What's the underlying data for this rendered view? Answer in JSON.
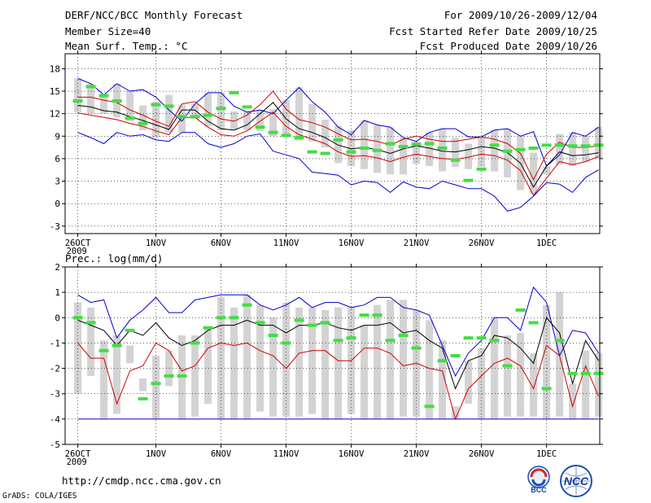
{
  "header": {
    "title": "DERF/NCC/BCC Monthly Forecast",
    "member_size": "Member Size=40",
    "range": "For 2009/10/26-2009/12/04",
    "fcst_started": "Fcst Started Refer Date 2009/10/25",
    "fcst_produced": "Fcst Produced Date 2009/10/26"
  },
  "footer": {
    "url": "http://cmdp.ncc.cma.gov.cn",
    "credit": "GrADS: COLA/IGES",
    "logo1_text": "BCC",
    "logo2_text": "NCC"
  },
  "chart_data": [
    {
      "type": "box-line",
      "title": "Mean Surf. Temp.: °C",
      "ylim": [
        -4,
        20
      ],
      "yticks": [
        -3,
        0,
        3,
        6,
        9,
        12,
        15,
        18
      ],
      "x_ticks": [
        {
          "day": 0,
          "label": "26OCT",
          "sub": "2009"
        },
        {
          "day": 6,
          "label": "1NOV"
        },
        {
          "day": 11,
          "label": "6NOV"
        },
        {
          "day": 16,
          "label": "11NOV"
        },
        {
          "day": 21,
          "label": "16NOV"
        },
        {
          "day": 26,
          "label": "21NOV"
        },
        {
          "day": 31,
          "label": "26NOV"
        },
        {
          "day": 36,
          "label": "1DEC"
        }
      ],
      "series": {
        "max": [
          16.7,
          16.0,
          14.5,
          16.0,
          15.0,
          15.2,
          14.2,
          12.5,
          11.0,
          13.3,
          14.8,
          14.8,
          13.0,
          12.2,
          12.5,
          12.0,
          13.8,
          15.5,
          13.6,
          12.2,
          10.2,
          9.2,
          11.1,
          10.5,
          10.2,
          8.8,
          8.3,
          9.5,
          10.0,
          10.0,
          8.9,
          8.9,
          9.8,
          10.0,
          9.0,
          9.6,
          5.0,
          6.5,
          9.5,
          9.0,
          10.2
        ],
        "p90": [
          14.2,
          14.2,
          13.8,
          13.5,
          12.5,
          11.8,
          11.0,
          10.3,
          13.3,
          13.6,
          12.2,
          11.3,
          11.0,
          11.8,
          13.2,
          15.0,
          12.6,
          11.2,
          10.8,
          10.2,
          9.3,
          8.5,
          8.6,
          8.3,
          7.8,
          8.6,
          9.0,
          8.6,
          8.3,
          8.3,
          8.6,
          8.9,
          8.6,
          8.0,
          6.7,
          3.2,
          6.6,
          8.2,
          7.5,
          7.5,
          7.7
        ],
        "mean": [
          13.1,
          12.9,
          12.4,
          12.2,
          11.6,
          11.1,
          10.5,
          9.9,
          12.5,
          12.5,
          11.0,
          10.0,
          9.8,
          10.5,
          12.0,
          13.5,
          11.3,
          10.0,
          9.5,
          8.8,
          7.8,
          7.3,
          7.5,
          7.2,
          6.7,
          7.3,
          7.7,
          7.4,
          7.0,
          6.9,
          7.2,
          7.6,
          7.4,
          6.8,
          5.4,
          2.2,
          5.0,
          6.9,
          6.4,
          6.5,
          6.8
        ],
        "p10": [
          12.1,
          11.8,
          11.5,
          11.2,
          10.7,
          10.3,
          9.7,
          9.2,
          11.5,
          11.5,
          10.2,
          9.2,
          9.0,
          9.7,
          11.0,
          12.2,
          10.3,
          9.2,
          8.6,
          8.0,
          6.9,
          6.3,
          6.4,
          6.1,
          5.6,
          6.2,
          6.6,
          6.3,
          6.0,
          5.9,
          6.2,
          6.6,
          6.4,
          5.8,
          4.4,
          1.1,
          3.4,
          5.6,
          5.2,
          5.6,
          6.3
        ],
        "min": [
          9.5,
          8.8,
          8.0,
          9.5,
          9.0,
          9.2,
          8.5,
          8.3,
          9.5,
          9.5,
          8.0,
          7.5,
          8.0,
          9.0,
          9.3,
          7.0,
          6.5,
          6.0,
          4.2,
          4.0,
          3.8,
          2.5,
          3.0,
          2.8,
          1.5,
          2.9,
          2.2,
          2.0,
          3.0,
          2.5,
          2.0,
          2.0,
          1.0,
          -1.0,
          -0.5,
          1.0,
          2.8,
          2.6,
          1.5,
          3.5,
          4.5
        ],
        "box_lo": [
          12.2,
          12.0,
          12.0,
          11.5,
          11.0,
          9.8,
          8.8,
          9.5,
          9.5,
          11.3,
          10.3,
          9.8,
          9.8,
          9.8,
          9.7,
          9.0,
          9.3,
          8.4,
          8.3,
          7.5,
          5.4,
          5.0,
          4.6,
          4.1,
          3.9,
          3.9,
          5.3,
          5.0,
          4.3,
          4.9,
          4.6,
          4.9,
          4.3,
          3.5,
          1.8,
          1.3,
          3.9,
          5.2,
          5.0,
          5.6,
          6.0
        ],
        "box_hi": [
          16.7,
          16.0,
          14.5,
          16.0,
          15.0,
          13.1,
          13.6,
          14.5,
          13.2,
          13.3,
          14.8,
          14.8,
          12.3,
          12.3,
          12.5,
          12.6,
          13.8,
          15.5,
          13.3,
          11.2,
          10.4,
          9.8,
          11.1,
          10.5,
          10.2,
          8.8,
          8.3,
          9.5,
          10.0,
          8.8,
          8.0,
          8.9,
          9.8,
          10.0,
          9.0,
          6.8,
          5.0,
          9.3,
          9.5,
          9.0,
          10.2
        ],
        "green": [
          13.7,
          15.6,
          14.4,
          13.7,
          11.4,
          10.7,
          13.2,
          13.0,
          11.6,
          11.6,
          11.8,
          12.7,
          14.8,
          12.9,
          10.2,
          9.5,
          9.1,
          8.8,
          6.9,
          6.7,
          8.5,
          6.9,
          7.4,
          7.1,
          8.0,
          7.6,
          7.9,
          8.0,
          7.4,
          5.8,
          3.1,
          4.6,
          7.8,
          7.0,
          7.2,
          7.4,
          7.8,
          7.8,
          7.7,
          7.7,
          7.8
        ]
      }
    },
    {
      "type": "box-line",
      "title": "Prec.: log(mm/d)",
      "ylim": [
        -5,
        2
      ],
      "yticks": [
        -5,
        -4,
        -3,
        -2,
        -1,
        0,
        1,
        2
      ],
      "x_ticks": [
        {
          "day": 0,
          "label": "26OCT",
          "sub": "2009"
        },
        {
          "day": 6,
          "label": "1NOV"
        },
        {
          "day": 11,
          "label": "6NOV"
        },
        {
          "day": 16,
          "label": "11NOV"
        },
        {
          "day": 21,
          "label": "16NOV"
        },
        {
          "day": 26,
          "label": "21NOV"
        },
        {
          "day": 31,
          "label": "26NOV"
        },
        {
          "day": 36,
          "label": "1DEC"
        }
      ],
      "series": {
        "max": [
          0.9,
          0.6,
          0.7,
          -0.8,
          -0.1,
          0.3,
          0.8,
          0.2,
          0.2,
          0.7,
          0.8,
          0.9,
          0.9,
          0.9,
          0.5,
          0.3,
          0.5,
          0.8,
          0.4,
          0.6,
          0.6,
          0.4,
          0.5,
          0.8,
          0.8,
          0.4,
          0.3,
          0.1,
          -1.1,
          -2.3,
          -1.4,
          -0.9,
          0.0,
          0.0,
          -0.5,
          1.2,
          0.6,
          -1.5,
          -0.5,
          -0.6,
          -1.4
        ],
        "mean": [
          -0.1,
          -0.3,
          -0.5,
          -1.1,
          -0.5,
          -0.7,
          -0.2,
          -0.8,
          -1.1,
          -0.9,
          -0.5,
          -0.3,
          -0.3,
          -0.1,
          -0.3,
          -0.3,
          -0.6,
          -0.3,
          -0.3,
          -0.2,
          -0.4,
          -0.5,
          -0.3,
          -0.3,
          -0.2,
          -0.6,
          -0.5,
          -0.9,
          -1.2,
          -2.8,
          -1.7,
          -1.5,
          -0.7,
          -0.8,
          -1.2,
          -1.8,
          0.0,
          -0.6,
          -2.6,
          -0.9,
          -1.7
        ],
        "low": [
          -1.0,
          -1.6,
          -1.6,
          -3.4,
          -2.1,
          -1.9,
          -1.0,
          -1.3,
          -2.1,
          -1.9,
          -1.2,
          -1.0,
          -1.1,
          -1.0,
          -1.3,
          -1.5,
          -2.0,
          -1.4,
          -1.3,
          -1.3,
          -1.7,
          -1.7,
          -1.2,
          -1.2,
          -1.4,
          -1.9,
          -1.8,
          -2.0,
          -2.1,
          -4.0,
          -2.8,
          -2.3,
          -1.8,
          -1.6,
          -1.9,
          -2.8,
          -1.1,
          -1.5,
          -3.5,
          -1.9,
          -3.1
        ],
        "min": [
          -4.0,
          -4.0,
          -4.0,
          -4.0,
          -4.0,
          -4.0,
          -4.0,
          -4.0,
          -4.0,
          -4.0,
          -4.0,
          -4.0,
          -4.0,
          -4.0,
          -4.0,
          -4.0,
          -4.0,
          -4.0,
          -4.0,
          -4.0,
          -4.0,
          -4.0,
          -4.0,
          -4.0,
          -4.0,
          -4.0,
          -4.0,
          -4.0,
          -4.0,
          -4.0,
          -4.0,
          -4.0,
          -4.0,
          -4.0,
          -4.0,
          -4.0,
          -4.0,
          -4.0,
          -4.0,
          -4.0,
          -4.0
        ],
        "box_lo": [
          -3.0,
          -2.3,
          -4.0,
          -3.8,
          -1.1,
          -2.9,
          -4.0,
          -2.7,
          -4.0,
          -3.9,
          -3.4,
          -4.0,
          -4.0,
          -4.0,
          -3.7,
          -3.9,
          -3.9,
          -3.9,
          -3.8,
          -4.0,
          -4.0,
          -3.8,
          -4.0,
          -4.0,
          -4.0,
          -3.9,
          -3.9,
          -4.0,
          -4.0,
          -4.0,
          -3.4,
          -4.0,
          -4.0,
          -3.9,
          -3.9,
          -3.9,
          -4.0,
          -3.9,
          -4.0,
          -4.0,
          -3.9
        ],
        "box_hi": [
          0.6,
          0.4,
          -0.9,
          -0.7,
          -1.8,
          -2.4,
          -1.5,
          -1.3,
          -0.7,
          -0.7,
          -0.4,
          0.8,
          0.4,
          0.9,
          0.5,
          0.0,
          0.6,
          0.4,
          0.4,
          0.3,
          0.4,
          0.4,
          -0.3,
          0.5,
          0.7,
          0.7,
          0.3,
          -0.1,
          -0.9,
          -3.5,
          -1.7,
          -1.2,
          0.0,
          -0.7,
          -0.6,
          -1.4,
          0.5,
          1.0,
          -2.6,
          -1.3,
          -1.4
        ],
        "green": [
          0.0,
          -0.2,
          -1.3,
          -1.1,
          -0.5,
          -3.2,
          -2.6,
          -2.3,
          -2.3,
          -1.0,
          -0.4,
          0.0,
          0.0,
          0.5,
          -0.2,
          -0.7,
          -1.0,
          -0.1,
          -0.3,
          -0.2,
          -0.9,
          -0.8,
          0.1,
          0.1,
          -0.9,
          -0.7,
          -1.2,
          -3.5,
          -1.7,
          -1.5,
          -0.8,
          -0.8,
          -0.9,
          -1.9,
          0.3,
          -0.2,
          -2.8,
          -0.9,
          -2.2,
          -2.2,
          -2.2
        ]
      }
    }
  ]
}
